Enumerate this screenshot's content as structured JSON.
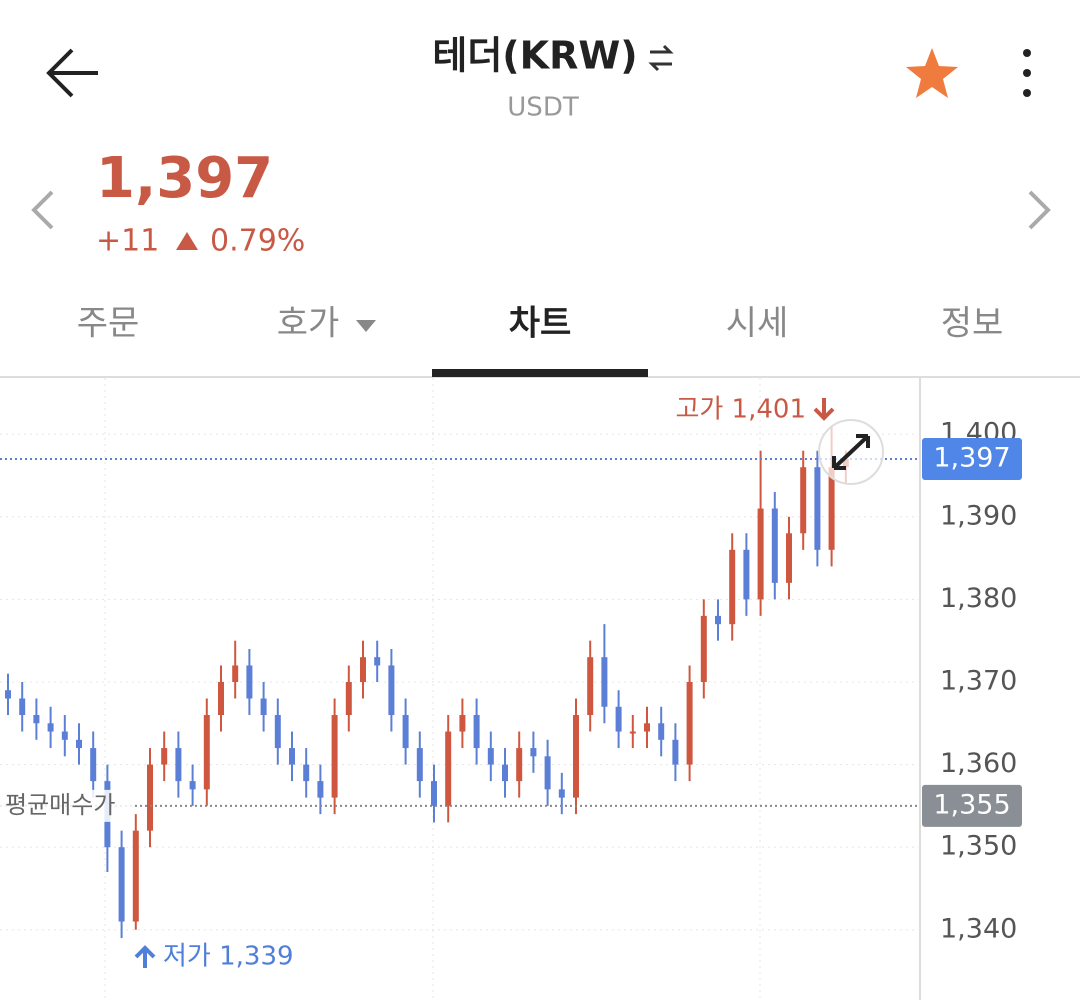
{
  "header": {
    "title": "테더(KRW)",
    "subtitle": "USDT"
  },
  "price": {
    "current": "1,397",
    "change": "+11",
    "change_rate": "0.79%"
  },
  "tabs": [
    "주문",
    "호가",
    "차트",
    "시세",
    "정보"
  ],
  "chart_data": {
    "type": "candlestick",
    "ylim": [
      1331.5,
      1406.8
    ],
    "yticks": [
      {
        "value": 1340,
        "label": "1,340"
      },
      {
        "value": 1350,
        "label": "1,350"
      },
      {
        "value": 1360,
        "label": "1,360"
      },
      {
        "value": 1370,
        "label": "1,370"
      },
      {
        "value": 1380,
        "label": "1,380"
      },
      {
        "value": 1390,
        "label": "1,390"
      },
      {
        "value": 1400,
        "label": "1,400"
      }
    ],
    "grid": true,
    "up_color": "#d0573f",
    "down_color": "#5b7fd6",
    "open": [
      1369,
      1368,
      1366,
      1365,
      1364,
      1363,
      1362,
      1358,
      1350,
      1341,
      1352,
      1360,
      1362,
      1358,
      1357,
      1366,
      1370,
      1372,
      1368,
      1366,
      1362,
      1360,
      1358,
      1356,
      1366,
      1370,
      1373,
      1372,
      1366,
      1362,
      1358,
      1355,
      1364,
      1366,
      1362,
      1360,
      1358,
      1362,
      1361,
      1357,
      1356,
      1366,
      1373,
      1367,
      1364,
      1364,
      1365,
      1363,
      1360,
      1370,
      1378,
      1377,
      1386,
      1380,
      1391,
      1382,
      1388,
      1396,
      1386,
      1396
    ],
    "high": [
      1371,
      1370,
      1368,
      1367,
      1366,
      1365,
      1364,
      1360,
      1352,
      1354,
      1362,
      1364,
      1364,
      1360,
      1368,
      1372,
      1375,
      1374,
      1370,
      1368,
      1364,
      1362,
      1360,
      1368,
      1372,
      1375,
      1375,
      1374,
      1368,
      1364,
      1360,
      1366,
      1368,
      1368,
      1364,
      1362,
      1364,
      1364,
      1363,
      1359,
      1368,
      1375,
      1377,
      1369,
      1366,
      1367,
      1367,
      1365,
      1372,
      1380,
      1380,
      1388,
      1388,
      1398,
      1393,
      1390,
      1398,
      1398,
      1401,
      1398
    ],
    "low": [
      1366,
      1364,
      1363,
      1362,
      1361,
      1360,
      1356,
      1347,
      1339,
      1340,
      1350,
      1358,
      1356,
      1355,
      1355,
      1364,
      1368,
      1366,
      1364,
      1360,
      1358,
      1356,
      1354,
      1354,
      1364,
      1368,
      1370,
      1364,
      1360,
      1356,
      1353,
      1353,
      1362,
      1360,
      1358,
      1356,
      1356,
      1359,
      1355,
      1354,
      1354,
      1364,
      1365,
      1362,
      1362,
      1362,
      1361,
      1358,
      1358,
      1368,
      1375,
      1375,
      1378,
      1378,
      1380,
      1380,
      1386,
      1384,
      1384,
      1394
    ],
    "close": [
      1368,
      1366,
      1365,
      1364,
      1363,
      1362,
      1358,
      1350,
      1341,
      1352,
      1360,
      1362,
      1358,
      1357,
      1366,
      1370,
      1372,
      1368,
      1366,
      1362,
      1360,
      1358,
      1356,
      1366,
      1370,
      1373,
      1372,
      1366,
      1362,
      1358,
      1355,
      1364,
      1366,
      1362,
      1360,
      1358,
      1362,
      1361,
      1357,
      1356,
      1366,
      1373,
      1367,
      1364,
      1364,
      1365,
      1363,
      1360,
      1370,
      1378,
      1377,
      1386,
      1380,
      1391,
      1382,
      1388,
      1396,
      1386,
      1396,
      1397
    ],
    "current_price": {
      "value": 1397,
      "label": "1,397"
    },
    "average_price": {
      "value": 1355,
      "label": "1,355"
    },
    "average_label": "평균매수가",
    "high_label": "고가 1,401",
    "low_label": "저가 1,339"
  }
}
